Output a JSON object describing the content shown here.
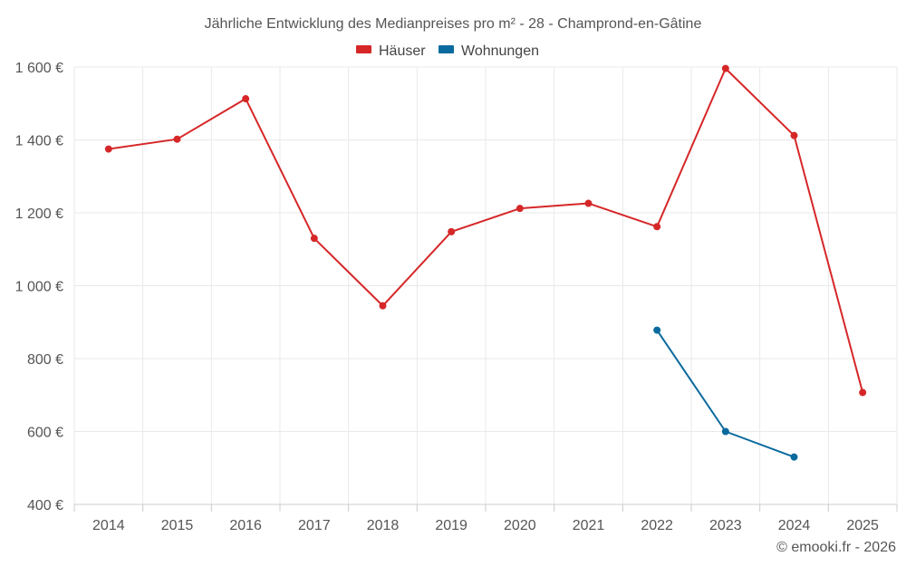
{
  "chart_data": {
    "type": "line",
    "title": "Jährliche Entwicklung des Medianpreises pro m² - 28 - Champrond-en-Gâtine",
    "categories": [
      "2014",
      "2015",
      "2016",
      "2017",
      "2018",
      "2019",
      "2020",
      "2021",
      "2022",
      "2023",
      "2024",
      "2025"
    ],
    "y_ticks": [
      "400 €",
      "600 €",
      "800 €",
      "1 000 €",
      "1 200 €",
      "1 400 €",
      "1 600 €"
    ],
    "ylim": [
      400,
      1600
    ],
    "y_tick_values": [
      400,
      600,
      800,
      1000,
      1200,
      1400,
      1600
    ],
    "legend_position": "top-center",
    "grid": true,
    "series": [
      {
        "name": "Häuser",
        "color": "#d62728",
        "values": [
          1375,
          1402,
          1513,
          1130,
          945,
          1148,
          1212,
          1226,
          1162,
          1596,
          1412,
          707
        ]
      },
      {
        "name": "Wohnungen",
        "color": "#0a6a9e",
        "values": [
          null,
          null,
          null,
          null,
          null,
          null,
          null,
          null,
          878,
          600,
          530,
          null
        ]
      }
    ],
    "credit": "© emooki.fr - 2026"
  }
}
